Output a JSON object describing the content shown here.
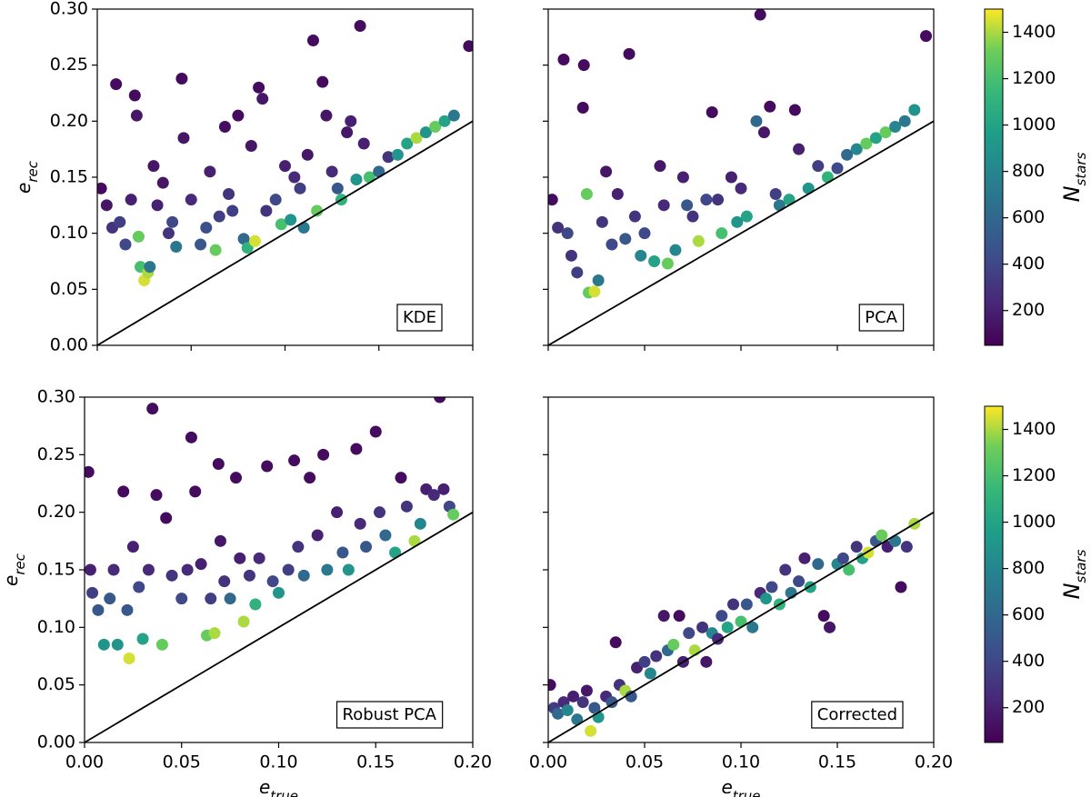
{
  "chart_data": [
    {
      "type": "scatter",
      "annotation": "KDE",
      "cmap": "viridis",
      "identity_line": true,
      "xlim": [
        0,
        0.2
      ],
      "ylim": [
        0,
        0.3
      ],
      "xticks": [
        {
          "value": 0,
          "label": "0.00"
        },
        {
          "value": 0.05,
          "label": "0.05"
        },
        {
          "value": 0.1,
          "label": "0.10"
        },
        {
          "value": 0.15,
          "label": "0.15"
        },
        {
          "value": 0.2,
          "label": "0.20"
        }
      ],
      "yticks": [
        {
          "value": 0,
          "label": "0.00"
        },
        {
          "value": 0.05,
          "label": "0.05"
        },
        {
          "value": 0.1,
          "label": "0.10"
        },
        {
          "value": 0.15,
          "label": "0.15"
        },
        {
          "value": 0.2,
          "label": "0.20"
        },
        {
          "value": 0.25,
          "label": "0.25"
        },
        {
          "value": 0.3,
          "label": "0.30"
        }
      ],
      "xtick_labels": false,
      "ytick_labels": true,
      "ylabel": {
        "text": "e",
        "sub": "rec"
      },
      "x": [
        0.002,
        0.005,
        0.008,
        0.01,
        0.012,
        0.015,
        0.018,
        0.02,
        0.021,
        0.022,
        0.023,
        0.025,
        0.027,
        0.028,
        0.03,
        0.032,
        0.035,
        0.038,
        0.04,
        0.042,
        0.045,
        0.046,
        0.05,
        0.055,
        0.058,
        0.06,
        0.063,
        0.065,
        0.068,
        0.07,
        0.072,
        0.075,
        0.078,
        0.08,
        0.082,
        0.084,
        0.086,
        0.088,
        0.09,
        0.095,
        0.098,
        0.1,
        0.103,
        0.105,
        0.108,
        0.11,
        0.112,
        0.115,
        0.117,
        0.12,
        0.122,
        0.125,
        0.128,
        0.13,
        0.133,
        0.135,
        0.138,
        0.14,
        0.142,
        0.145,
        0.15,
        0.155,
        0.16,
        0.165,
        0.17,
        0.175,
        0.18,
        0.185,
        0.19,
        0.198
      ],
      "values": [
        0.14,
        0.125,
        0.105,
        0.233,
        0.11,
        0.09,
        0.13,
        0.223,
        0.205,
        0.097,
        0.07,
        0.058,
        0.065,
        0.07,
        0.16,
        0.125,
        0.145,
        0.1,
        0.11,
        0.088,
        0.238,
        0.185,
        0.13,
        0.09,
        0.105,
        0.155,
        0.085,
        0.115,
        0.195,
        0.135,
        0.12,
        0.205,
        0.095,
        0.087,
        0.178,
        0.093,
        0.23,
        0.22,
        0.12,
        0.13,
        0.108,
        0.16,
        0.112,
        0.15,
        0.14,
        0.105,
        0.17,
        0.272,
        0.12,
        0.235,
        0.205,
        0.155,
        0.14,
        0.13,
        0.19,
        0.2,
        0.148,
        0.285,
        0.18,
        0.15,
        0.155,
        0.168,
        0.17,
        0.18,
        0.185,
        0.19,
        0.195,
        0.2,
        0.205,
        0.267
      ],
      "c": [
        100,
        150,
        300,
        100,
        350,
        400,
        200,
        100,
        150,
        1300,
        1200,
        1450,
        1400,
        700,
        150,
        200,
        150,
        300,
        400,
        700,
        100,
        150,
        250,
        500,
        450,
        200,
        1300,
        350,
        120,
        300,
        350,
        100,
        600,
        1100,
        150,
        1450,
        100,
        150,
        300,
        400,
        1200,
        200,
        900,
        250,
        350,
        700,
        150,
        100,
        1300,
        100,
        150,
        250,
        500,
        1100,
        150,
        200,
        900,
        100,
        200,
        1200,
        600,
        300,
        900,
        1000,
        1400,
        900,
        1300,
        1000,
        700,
        100
      ]
    },
    {
      "type": "scatter",
      "annotation": "PCA",
      "cmap": "viridis",
      "identity_line": true,
      "xlim": [
        0,
        0.2
      ],
      "ylim": [
        0,
        0.3
      ],
      "xticks": [
        0,
        0.05,
        0.1,
        0.15,
        0.2
      ],
      "yticks": [
        0,
        0.05,
        0.1,
        0.15,
        0.2,
        0.25,
        0.3
      ],
      "xtick_labels": false,
      "ytick_labels": false,
      "colorbar": {
        "label": {
          "text": "N",
          "sub": "stars"
        },
        "lim": [
          50,
          1500
        ],
        "ticks": [
          200,
          400,
          600,
          800,
          1000,
          1200,
          1400
        ]
      },
      "x": [
        0.002,
        0.005,
        0.008,
        0.01,
        0.012,
        0.015,
        0.018,
        0.0185,
        0.02,
        0.021,
        0.024,
        0.026,
        0.028,
        0.03,
        0.033,
        0.036,
        0.04,
        0.042,
        0.045,
        0.048,
        0.05,
        0.055,
        0.058,
        0.06,
        0.062,
        0.066,
        0.07,
        0.072,
        0.075,
        0.078,
        0.082,
        0.085,
        0.088,
        0.09,
        0.095,
        0.098,
        0.1,
        0.103,
        0.108,
        0.11,
        0.112,
        0.115,
        0.118,
        0.12,
        0.125,
        0.128,
        0.13,
        0.135,
        0.14,
        0.145,
        0.15,
        0.155,
        0.16,
        0.165,
        0.17,
        0.175,
        0.18,
        0.185,
        0.19,
        0.196
      ],
      "values": [
        0.13,
        0.105,
        0.255,
        0.1,
        0.08,
        0.065,
        0.212,
        0.25,
        0.135,
        0.047,
        0.048,
        0.058,
        0.11,
        0.155,
        0.09,
        0.135,
        0.095,
        0.26,
        0.115,
        0.08,
        0.1,
        0.075,
        0.16,
        0.125,
        0.073,
        0.085,
        0.15,
        0.125,
        0.115,
        0.093,
        0.13,
        0.208,
        0.13,
        0.1,
        0.15,
        0.11,
        0.14,
        0.115,
        0.2,
        0.295,
        0.19,
        0.213,
        0.135,
        0.125,
        0.13,
        0.21,
        0.175,
        0.14,
        0.16,
        0.15,
        0.158,
        0.17,
        0.175,
        0.18,
        0.185,
        0.19,
        0.195,
        0.2,
        0.21,
        0.276
      ],
      "c": [
        100,
        300,
        100,
        400,
        300,
        350,
        100,
        100,
        1300,
        1300,
        1450,
        700,
        300,
        150,
        400,
        200,
        500,
        100,
        300,
        800,
        400,
        1000,
        150,
        250,
        1300,
        800,
        200,
        500,
        300,
        1400,
        400,
        100,
        300,
        1200,
        200,
        900,
        250,
        1000,
        600,
        100,
        150,
        100,
        350,
        700,
        1000,
        100,
        200,
        900,
        350,
        1100,
        400,
        600,
        800,
        1300,
        1000,
        1300,
        800,
        700,
        900,
        100
      ]
    },
    {
      "type": "scatter",
      "annotation": "Robust PCA",
      "cmap": "viridis",
      "identity_line": true,
      "xlim": [
        0,
        0.2
      ],
      "ylim": [
        0,
        0.3
      ],
      "xticks": [
        {
          "value": 0,
          "label": "0.00"
        },
        {
          "value": 0.05,
          "label": "0.05"
        },
        {
          "value": 0.1,
          "label": "0.10"
        },
        {
          "value": 0.15,
          "label": "0.15"
        },
        {
          "value": 0.2,
          "label": "0.20"
        }
      ],
      "yticks": [
        {
          "value": 0,
          "label": "0.00"
        },
        {
          "value": 0.05,
          "label": "0.05"
        },
        {
          "value": 0.1,
          "label": "0.10"
        },
        {
          "value": 0.15,
          "label": "0.15"
        },
        {
          "value": 0.2,
          "label": "0.20"
        },
        {
          "value": 0.25,
          "label": "0.25"
        },
        {
          "value": 0.3,
          "label": "0.30"
        }
      ],
      "xtick_labels": true,
      "ytick_labels": true,
      "xlabel": {
        "text": "e",
        "sub": "true"
      },
      "ylabel": {
        "text": "e",
        "sub": "rec"
      },
      "x": [
        0.002,
        0.003,
        0.004,
        0.007,
        0.01,
        0.013,
        0.015,
        0.017,
        0.02,
        0.022,
        0.023,
        0.025,
        0.028,
        0.03,
        0.033,
        0.035,
        0.037,
        0.04,
        0.042,
        0.045,
        0.05,
        0.053,
        0.055,
        0.057,
        0.06,
        0.063,
        0.065,
        0.067,
        0.069,
        0.07,
        0.072,
        0.075,
        0.078,
        0.08,
        0.082,
        0.085,
        0.088,
        0.09,
        0.094,
        0.097,
        0.1,
        0.105,
        0.108,
        0.11,
        0.113,
        0.116,
        0.12,
        0.123,
        0.125,
        0.13,
        0.133,
        0.136,
        0.14,
        0.142,
        0.145,
        0.15,
        0.152,
        0.155,
        0.16,
        0.163,
        0.166,
        0.17,
        0.173,
        0.176,
        0.18,
        0.183,
        0.185,
        0.188,
        0.19
      ],
      "values": [
        0.235,
        0.15,
        0.13,
        0.115,
        0.085,
        0.125,
        0.15,
        0.085,
        0.218,
        0.115,
        0.073,
        0.17,
        0.135,
        0.09,
        0.15,
        0.29,
        0.215,
        0.085,
        0.195,
        0.145,
        0.125,
        0.15,
        0.265,
        0.218,
        0.155,
        0.093,
        0.125,
        0.095,
        0.242,
        0.175,
        0.14,
        0.125,
        0.23,
        0.16,
        0.105,
        0.145,
        0.12,
        0.16,
        0.24,
        0.14,
        0.13,
        0.15,
        0.245,
        0.17,
        0.145,
        0.23,
        0.18,
        0.25,
        0.15,
        0.2,
        0.165,
        0.15,
        0.255,
        0.19,
        0.17,
        0.27,
        0.2,
        0.18,
        0.165,
        0.23,
        0.205,
        0.175,
        0.19,
        0.22,
        0.215,
        0.3,
        0.22,
        0.205,
        0.198
      ],
      "c": [
        100,
        200,
        350,
        500,
        900,
        500,
        250,
        900,
        100,
        500,
        1450,
        200,
        400,
        1000,
        250,
        100,
        100,
        1300,
        100,
        300,
        400,
        250,
        100,
        100,
        200,
        1300,
        350,
        1400,
        100,
        150,
        300,
        600,
        100,
        200,
        1400,
        300,
        1100,
        250,
        100,
        400,
        900,
        350,
        100,
        300,
        600,
        100,
        200,
        100,
        700,
        200,
        500,
        900,
        100,
        250,
        500,
        100,
        300,
        600,
        1000,
        100,
        300,
        1400,
        800,
        200,
        250,
        100,
        200,
        400,
        1300
      ]
    },
    {
      "type": "scatter",
      "annotation": "Corrected",
      "cmap": "viridis",
      "identity_line": true,
      "xlim": [
        0,
        0.2
      ],
      "ylim": [
        0,
        0.3
      ],
      "xticks": [
        {
          "value": 0,
          "label": "0.00"
        },
        {
          "value": 0.05,
          "label": "0.05"
        },
        {
          "value": 0.1,
          "label": "0.10"
        },
        {
          "value": 0.15,
          "label": "0.15"
        },
        {
          "value": 0.2,
          "label": "0.20"
        }
      ],
      "yticks": [
        0,
        0.05,
        0.1,
        0.15,
        0.2,
        0.25,
        0.3
      ],
      "xtick_labels": true,
      "ytick_labels": false,
      "xlabel": {
        "text": "e",
        "sub": "true"
      },
      "colorbar": {
        "label": {
          "text": "N",
          "sub": "stars"
        },
        "lim": [
          50,
          1500
        ],
        "ticks": [
          200,
          400,
          600,
          800,
          1000,
          1200,
          1400
        ]
      },
      "x": [
        0.001,
        0.003,
        0.005,
        0.008,
        0.01,
        0.013,
        0.015,
        0.018,
        0.02,
        0.022,
        0.024,
        0.026,
        0.03,
        0.033,
        0.035,
        0.037,
        0.04,
        0.043,
        0.046,
        0.05,
        0.053,
        0.056,
        0.06,
        0.062,
        0.065,
        0.068,
        0.07,
        0.073,
        0.076,
        0.08,
        0.082,
        0.085,
        0.088,
        0.09,
        0.093,
        0.096,
        0.1,
        0.103,
        0.106,
        0.11,
        0.113,
        0.116,
        0.12,
        0.123,
        0.126,
        0.13,
        0.133,
        0.136,
        0.14,
        0.143,
        0.146,
        0.15,
        0.153,
        0.156,
        0.16,
        0.163,
        0.166,
        0.17,
        0.173,
        0.176,
        0.18,
        0.183,
        0.186,
        0.19
      ],
      "values": [
        0.05,
        0.03,
        0.025,
        0.035,
        0.028,
        0.04,
        0.02,
        0.035,
        0.045,
        0.01,
        0.03,
        0.022,
        0.04,
        0.035,
        0.087,
        0.05,
        0.045,
        0.04,
        0.065,
        0.07,
        0.06,
        0.075,
        0.11,
        0.08,
        0.085,
        0.11,
        0.07,
        0.095,
        0.08,
        0.1,
        0.07,
        0.095,
        0.09,
        0.11,
        0.1,
        0.12,
        0.105,
        0.12,
        0.1,
        0.13,
        0.125,
        0.135,
        0.12,
        0.15,
        0.13,
        0.14,
        0.16,
        0.135,
        0.155,
        0.11,
        0.1,
        0.155,
        0.16,
        0.15,
        0.17,
        0.16,
        0.165,
        0.175,
        0.18,
        0.17,
        0.175,
        0.135,
        0.17,
        0.19
      ],
      "c": [
        100,
        350,
        600,
        250,
        800,
        200,
        700,
        300,
        150,
        1450,
        500,
        900,
        250,
        500,
        100,
        300,
        1400,
        500,
        200,
        350,
        800,
        300,
        150,
        600,
        1300,
        100,
        200,
        400,
        1400,
        300,
        150,
        800,
        250,
        400,
        1000,
        300,
        1200,
        500,
        700,
        250,
        900,
        400,
        1100,
        300,
        700,
        400,
        200,
        1000,
        600,
        100,
        150,
        800,
        400,
        1200,
        300,
        1000,
        1450,
        500,
        1300,
        200,
        700,
        100,
        300,
        1400
      ]
    }
  ]
}
